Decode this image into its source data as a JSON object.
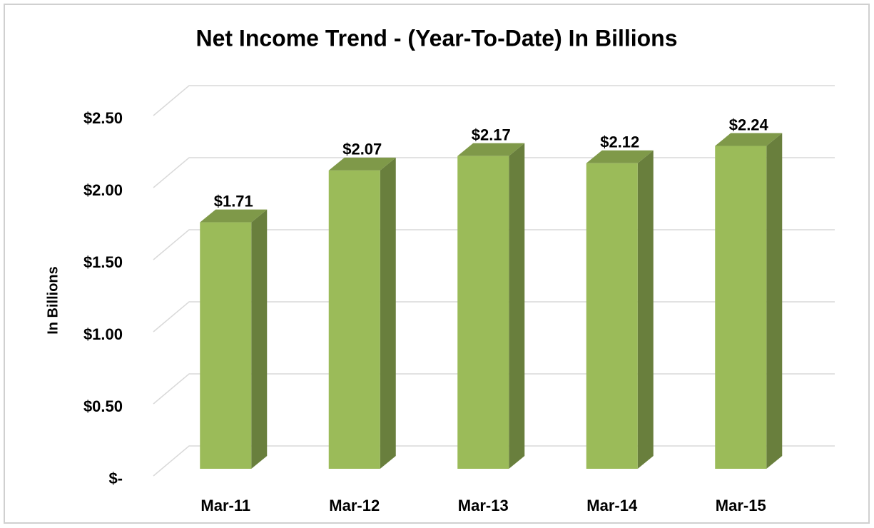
{
  "chart_data": {
    "type": "bar3d",
    "title": "Net Income Trend - (Year-To-Date) In Billions",
    "y_label": "In Billions",
    "categories": [
      "Mar-11",
      "Mar-12",
      "Mar-13",
      "Mar-14",
      "Mar-15"
    ],
    "values": [
      1.71,
      2.07,
      2.17,
      2.12,
      2.24
    ],
    "value_labels": [
      "$1.71",
      "$2.07",
      "$2.17",
      "$2.12",
      "$2.24"
    ],
    "color": "#9bbb59",
    "ylim": [
      0,
      2.5
    ],
    "yticks": [
      {
        "value": 0,
        "label": "$-"
      },
      {
        "value": 0.5,
        "label": "$0.50"
      },
      {
        "value": 1,
        "label": "$1.00"
      },
      {
        "value": 1.5,
        "label": "$1.50"
      },
      {
        "value": 2,
        "label": "$2.00"
      },
      {
        "value": 2.5,
        "label": "$2.50"
      }
    ],
    "grid": true
  }
}
